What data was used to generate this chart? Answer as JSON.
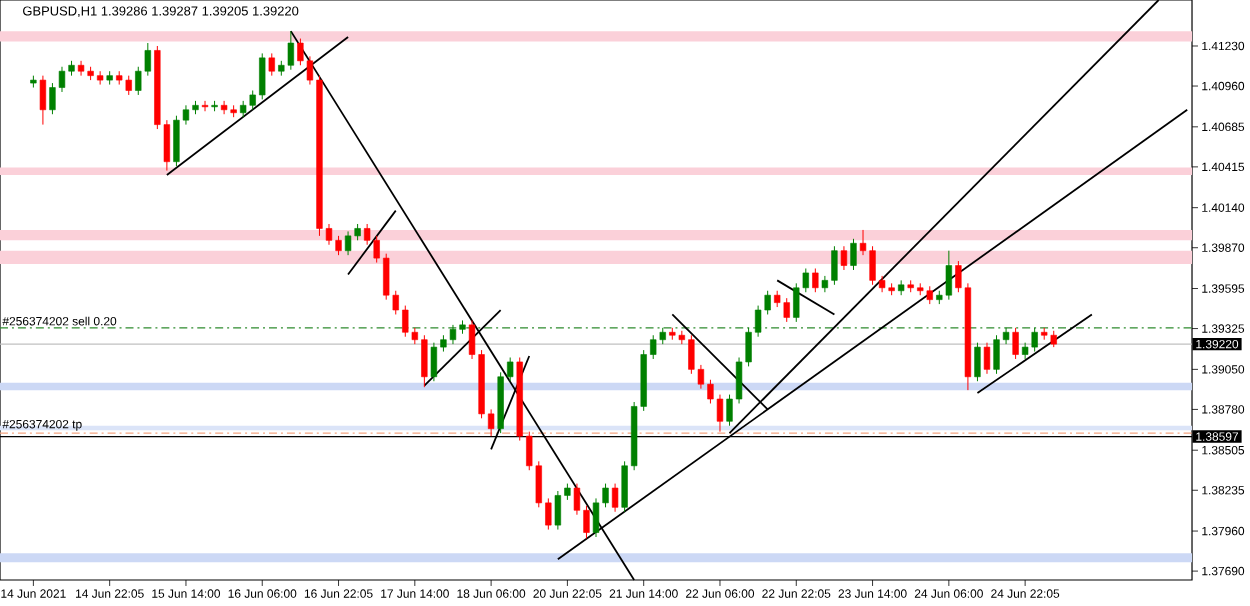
{
  "chart_data": {
    "type": "candlestick",
    "title": "GBPUSD,H1  1.39286 1.39287 1.39205 1.39220",
    "categories": [
      "14 Jun 2021",
      null,
      null,
      null,
      null,
      null,
      null,
      null,
      "14 Jun 22:05",
      null,
      null,
      null,
      null,
      null,
      null,
      null,
      "15 Jun 14:00",
      null,
      null,
      null,
      null,
      null,
      null,
      null,
      "16 Jun 06:00",
      null,
      null,
      null,
      null,
      null,
      null,
      null,
      "16 Jun 22:05",
      null,
      null,
      null,
      null,
      null,
      null,
      null,
      "17 Jun 14:00",
      null,
      null,
      null,
      null,
      null,
      null,
      null,
      "18 Jun 06:00",
      null,
      null,
      null,
      null,
      null,
      null,
      null,
      "20 Jun 22:05",
      null,
      null,
      null,
      null,
      null,
      null,
      null,
      "21 Jun 14:00",
      null,
      null,
      null,
      null,
      null,
      null,
      null,
      "22 Jun 06:00",
      null,
      null,
      null,
      null,
      null,
      null,
      null,
      "22 Jun 22:05",
      null,
      null,
      null,
      null,
      null,
      null,
      null,
      "23 Jun 14:00",
      null,
      null,
      null,
      null,
      null,
      null,
      null,
      "24 Jun 06:00",
      null,
      null,
      null,
      null,
      null,
      null,
      null,
      "24 Jun 22:05",
      null,
      null,
      null,
      null,
      null,
      null,
      null,
      null,
      null,
      null,
      null,
      null,
      null,
      null,
      null,
      null,
      null
    ],
    "ohlc": [
      [
        1.4098,
        1.4103,
        1.4095,
        1.41
      ],
      [
        1.41,
        1.4103,
        1.407,
        1.408
      ],
      [
        1.408,
        1.4098,
        1.4077,
        1.4095
      ],
      [
        1.4095,
        1.4109,
        1.4092,
        1.4106
      ],
      [
        1.4106,
        1.4113,
        1.4103,
        1.411
      ],
      [
        1.411,
        1.4113,
        1.4103,
        1.4106
      ],
      [
        1.4106,
        1.4109,
        1.41,
        1.4103
      ],
      [
        1.4103,
        1.4106,
        1.4097,
        1.41
      ],
      [
        1.41,
        1.4106,
        1.4097,
        1.4103
      ],
      [
        1.4103,
        1.4106,
        1.4097,
        1.41
      ],
      [
        1.41,
        1.4103,
        1.409,
        1.4093
      ],
      [
        1.4093,
        1.4109,
        1.409,
        1.4106
      ],
      [
        1.4106,
        1.4125,
        1.4103,
        1.412
      ],
      [
        1.412,
        1.4123,
        1.4067,
        1.407
      ],
      [
        1.407,
        1.4073,
        1.4039,
        1.4045
      ],
      [
        1.4045,
        1.4076,
        1.4042,
        1.4073
      ],
      [
        1.4073,
        1.4083,
        1.407,
        1.408
      ],
      [
        1.408,
        1.4086,
        1.4077,
        1.4083
      ],
      [
        1.4083,
        1.4086,
        1.4079,
        1.4082
      ],
      [
        1.4082,
        1.4086,
        1.4079,
        1.4083
      ],
      [
        1.4083,
        1.4086,
        1.4077,
        1.408
      ],
      [
        1.408,
        1.4083,
        1.4075,
        1.4078
      ],
      [
        1.4078,
        1.4086,
        1.4075,
        1.4083
      ],
      [
        1.4083,
        1.4093,
        1.408,
        1.409
      ],
      [
        1.409,
        1.4118,
        1.4087,
        1.4115
      ],
      [
        1.4115,
        1.4118,
        1.4103,
        1.4106
      ],
      [
        1.4106,
        1.4113,
        1.4103,
        1.411
      ],
      [
        1.411,
        1.4133,
        1.4107,
        1.4125
      ],
      [
        1.4125,
        1.4128,
        1.411,
        1.4113
      ],
      [
        1.4113,
        1.4116,
        1.4097,
        1.41
      ],
      [
        1.41,
        1.4103,
        1.3995,
        1.4
      ],
      [
        1.4,
        1.4003,
        1.3989,
        1.3992
      ],
      [
        1.3992,
        1.3995,
        1.3982,
        1.3985
      ],
      [
        1.3985,
        1.3998,
        1.3982,
        1.3995
      ],
      [
        1.3995,
        1.4003,
        1.3992,
        1.4
      ],
      [
        1.4,
        1.4003,
        1.3989,
        1.3992
      ],
      [
        1.3992,
        1.3995,
        1.3977,
        1.398
      ],
      [
        1.398,
        1.3983,
        1.3952,
        1.3955
      ],
      [
        1.3955,
        1.3958,
        1.3942,
        1.3945
      ],
      [
        1.3945,
        1.3948,
        1.3927,
        1.393
      ],
      [
        1.393,
        1.3933,
        1.3922,
        1.3925
      ],
      [
        1.3925,
        1.3928,
        1.3893,
        1.39
      ],
      [
        1.39,
        1.3923,
        1.3897,
        1.392
      ],
      [
        1.392,
        1.3928,
        1.3917,
        1.3925
      ],
      [
        1.3925,
        1.3935,
        1.3922,
        1.3932
      ],
      [
        1.3932,
        1.3938,
        1.3929,
        1.3935
      ],
      [
        1.3935,
        1.3938,
        1.3912,
        1.3915
      ],
      [
        1.3915,
        1.3918,
        1.3872,
        1.3875
      ],
      [
        1.3875,
        1.3878,
        1.386,
        1.3865
      ],
      [
        1.3865,
        1.3903,
        1.3862,
        1.39
      ],
      [
        1.39,
        1.3913,
        1.3897,
        1.391
      ],
      [
        1.391,
        1.3913,
        1.3857,
        1.386
      ],
      [
        1.386,
        1.3863,
        1.3837,
        1.384
      ],
      [
        1.384,
        1.3843,
        1.3812,
        1.3815
      ],
      [
        1.3815,
        1.3818,
        1.3797,
        1.38
      ],
      [
        1.38,
        1.3823,
        1.3797,
        1.382
      ],
      [
        1.382,
        1.3828,
        1.3817,
        1.3825
      ],
      [
        1.3825,
        1.3828,
        1.3807,
        1.381
      ],
      [
        1.381,
        1.3813,
        1.3791,
        1.3795
      ],
      [
        1.3795,
        1.3818,
        1.3792,
        1.3815
      ],
      [
        1.3815,
        1.3828,
        1.3812,
        1.3825
      ],
      [
        1.3825,
        1.3828,
        1.3809,
        1.3812
      ],
      [
        1.3812,
        1.3843,
        1.3809,
        1.384
      ],
      [
        1.384,
        1.3883,
        1.3837,
        1.388
      ],
      [
        1.388,
        1.3918,
        1.3877,
        1.3915
      ],
      [
        1.3915,
        1.3928,
        1.3912,
        1.3925
      ],
      [
        1.3925,
        1.3933,
        1.3922,
        1.393
      ],
      [
        1.393,
        1.3933,
        1.3925,
        1.3928
      ],
      [
        1.3928,
        1.3931,
        1.3922,
        1.3925
      ],
      [
        1.3925,
        1.3928,
        1.3902,
        1.3905
      ],
      [
        1.3905,
        1.3908,
        1.3892,
        1.3895
      ],
      [
        1.3895,
        1.3898,
        1.3882,
        1.3885
      ],
      [
        1.3885,
        1.3888,
        1.3863,
        1.387
      ],
      [
        1.387,
        1.3888,
        1.3867,
        1.3885
      ],
      [
        1.3885,
        1.3913,
        1.3882,
        1.391
      ],
      [
        1.391,
        1.3933,
        1.3907,
        1.393
      ],
      [
        1.393,
        1.3948,
        1.3927,
        1.3945
      ],
      [
        1.3945,
        1.3958,
        1.3942,
        1.3955
      ],
      [
        1.3955,
        1.3958,
        1.3947,
        1.395
      ],
      [
        1.395,
        1.3953,
        1.3937,
        1.394
      ],
      [
        1.394,
        1.3963,
        1.3937,
        1.396
      ],
      [
        1.396,
        1.3973,
        1.3957,
        1.397
      ],
      [
        1.397,
        1.3973,
        1.3957,
        1.396
      ],
      [
        1.396,
        1.3968,
        1.3957,
        1.3965
      ],
      [
        1.3965,
        1.3988,
        1.3962,
        1.3985
      ],
      [
        1.3985,
        1.3988,
        1.3972,
        1.3975
      ],
      [
        1.3975,
        1.3993,
        1.3972,
        1.399
      ],
      [
        1.399,
        1.3999,
        1.3982,
        1.3985
      ],
      [
        1.3985,
        1.3988,
        1.3962,
        1.3965
      ],
      [
        1.3965,
        1.3968,
        1.3957,
        1.396
      ],
      [
        1.396,
        1.3963,
        1.3955,
        1.3958
      ],
      [
        1.3958,
        1.3965,
        1.3955,
        1.3962
      ],
      [
        1.3962,
        1.3965,
        1.3957,
        1.396
      ],
      [
        1.396,
        1.3963,
        1.3955,
        1.3958
      ],
      [
        1.3958,
        1.3961,
        1.3949,
        1.3952
      ],
      [
        1.3952,
        1.3958,
        1.3949,
        1.3955
      ],
      [
        1.3955,
        1.3985,
        1.3952,
        1.3975
      ],
      [
        1.3975,
        1.3978,
        1.3957,
        1.396
      ],
      [
        1.396,
        1.3963,
        1.3891,
        1.39
      ],
      [
        1.39,
        1.3923,
        1.3897,
        1.392
      ],
      [
        1.392,
        1.3923,
        1.3902,
        1.3905
      ],
      [
        1.3905,
        1.3928,
        1.3902,
        1.3925
      ],
      [
        1.3925,
        1.3933,
        1.3922,
        1.393
      ],
      [
        1.393,
        1.3933,
        1.3912,
        1.3915
      ],
      [
        1.3915,
        1.3923,
        1.3912,
        1.392
      ],
      [
        1.392,
        1.3933,
        1.3917,
        1.393
      ],
      [
        1.393,
        1.3933,
        1.3925,
        1.3928
      ],
      [
        1.3928,
        1.3931,
        1.392,
        1.3922
      ],
      null,
      null,
      null,
      null,
      null,
      null,
      null,
      null,
      null,
      null,
      null,
      null,
      null,
      null
    ],
    "colors": [
      "#008000",
      "#ff0000",
      "#008000",
      "#008000",
      "#008000",
      "#ff0000",
      "#ff0000",
      "#ff0000",
      "#008000",
      "#ff0000",
      "#ff0000",
      "#008000",
      "#008000",
      "#ff0000",
      "#ff0000",
      "#008000",
      "#008000",
      "#008000",
      "#ff0000",
      "#008000",
      "#ff0000",
      "#ff0000",
      "#008000",
      "#008000",
      "#008000",
      "#ff0000",
      "#008000",
      "#008000",
      "#ff0000",
      "#ff0000",
      "#ff0000",
      "#ff0000",
      "#ff0000",
      "#008000",
      "#008000",
      "#ff0000",
      "#ff0000",
      "#ff0000",
      "#ff0000",
      "#ff0000",
      "#ff0000",
      "#ff0000",
      "#008000",
      "#008000",
      "#008000",
      "#008000",
      "#ff0000",
      "#ff0000",
      "#ff0000",
      "#008000",
      "#008000",
      "#ff0000",
      "#ff0000",
      "#ff0000",
      "#ff0000",
      "#008000",
      "#008000",
      "#ff0000",
      "#ff0000",
      "#008000",
      "#008000",
      "#ff0000",
      "#008000",
      "#008000",
      "#008000",
      "#008000",
      "#008000",
      "#ff0000",
      "#ff0000",
      "#ff0000",
      "#ff0000",
      "#ff0000",
      "#ff0000",
      "#008000",
      "#008000",
      "#008000",
      "#008000",
      "#008000",
      "#ff0000",
      "#ff0000",
      "#008000",
      "#008000",
      "#ff0000",
      "#008000",
      "#008000",
      "#ff0000",
      "#008000",
      "#ff0000",
      "#ff0000",
      "#ff0000",
      "#ff0000",
      "#008000",
      "#ff0000",
      "#ff0000",
      "#ff0000",
      "#008000",
      "#008000",
      "#ff0000",
      "#ff0000",
      "#008000",
      "#ff0000",
      "#008000",
      "#008000",
      "#ff0000",
      "#008000",
      "#008000",
      "#ff0000",
      "#ff0000",
      null,
      null,
      null,
      null,
      null,
      null,
      null,
      null,
      null,
      null,
      null,
      null,
      null,
      null
    ],
    "series": [
      {
        "type": "line",
        "color": "#000000",
        "values": [
          null,
          null,
          null,
          null,
          null,
          null,
          null,
          null,
          null,
          null,
          null,
          null,
          null,
          null,
          1.4036,
          null,
          null,
          null,
          null,
          null,
          null,
          null,
          null,
          null,
          null,
          null,
          null,
          null,
          null,
          null,
          null,
          null,
          null,
          1.4129,
          null,
          null,
          null,
          null,
          null,
          null,
          null,
          null,
          null,
          null,
          null,
          null,
          null,
          null,
          null,
          null,
          null,
          null,
          null,
          null,
          null,
          null,
          null,
          null,
          null,
          null,
          null,
          null,
          null,
          null,
          null,
          null,
          null,
          null,
          null,
          null,
          null,
          null,
          null,
          null,
          null,
          null,
          null,
          null,
          null,
          null,
          null,
          null,
          null,
          null,
          null,
          null,
          null,
          null,
          null,
          null,
          null,
          null,
          null,
          null,
          null,
          null,
          null,
          null,
          null,
          null,
          null,
          null,
          null,
          null,
          null,
          null,
          null,
          null,
          null,
          null,
          null,
          null,
          null,
          null,
          null,
          null,
          null,
          null,
          null,
          null,
          null,
          null
        ]
      },
      {
        "type": "line",
        "color": "#000000",
        "values": [
          null,
          null,
          null,
          null,
          null,
          null,
          null,
          null,
          null,
          null,
          null,
          null,
          null,
          null,
          null,
          null,
          null,
          null,
          null,
          null,
          null,
          null,
          null,
          null,
          null,
          null,
          null,
          1.4133,
          null,
          null,
          null,
          null,
          null,
          null,
          null,
          null,
          null,
          null,
          null,
          null,
          null,
          null,
          null,
          null,
          null,
          null,
          null,
          null,
          null,
          null,
          null,
          null,
          null,
          null,
          null,
          null,
          null,
          null,
          null,
          null,
          null,
          null,
          null,
          1.3763,
          null,
          null,
          null,
          null,
          null,
          null,
          null,
          null,
          null,
          null,
          null,
          null,
          null,
          null,
          null,
          null,
          null,
          null,
          null,
          null,
          null,
          null,
          null,
          null,
          null,
          null,
          null,
          null,
          null,
          null,
          null,
          null,
          null,
          null,
          null,
          null,
          null,
          null,
          null,
          null,
          null,
          null,
          null,
          null,
          null,
          null,
          null,
          null,
          null,
          null,
          null,
          null,
          null,
          null,
          null,
          null,
          null,
          null
        ]
      },
      {
        "type": "line",
        "color": "#000000",
        "values": [
          null,
          null,
          null,
          null,
          null,
          null,
          null,
          null,
          null,
          null,
          null,
          null,
          null,
          null,
          null,
          null,
          null,
          null,
          null,
          null,
          null,
          null,
          null,
          null,
          null,
          null,
          null,
          null,
          null,
          null,
          null,
          null,
          null,
          1.3969,
          null,
          null,
          null,
          null,
          1.4012,
          null,
          null,
          null,
          null,
          null,
          null,
          null,
          null,
          null,
          null,
          null,
          null,
          null,
          null,
          null,
          null,
          null,
          null,
          null,
          null,
          null,
          null,
          null,
          null,
          null,
          null,
          null,
          null,
          null,
          null,
          null,
          null,
          null,
          null,
          null,
          null,
          null,
          null,
          null,
          null,
          null,
          null,
          null,
          null,
          null,
          null,
          null,
          null,
          null,
          null,
          null,
          null,
          null,
          null,
          null,
          null,
          null,
          null,
          null,
          null,
          null,
          null,
          null,
          null,
          null,
          null,
          null,
          null,
          null,
          null,
          null,
          null,
          null,
          null,
          null,
          null,
          null,
          null,
          null,
          null,
          null,
          null,
          null
        ]
      },
      {
        "type": "line",
        "color": "#000000",
        "values": [
          null,
          null,
          null,
          null,
          null,
          null,
          null,
          null,
          null,
          null,
          null,
          null,
          null,
          null,
          null,
          null,
          null,
          null,
          null,
          null,
          null,
          null,
          null,
          null,
          null,
          null,
          null,
          null,
          null,
          null,
          null,
          null,
          null,
          null,
          null,
          null,
          null,
          null,
          null,
          null,
          null,
          1.3894,
          null,
          null,
          null,
          null,
          null,
          null,
          null,
          1.3945,
          null,
          null,
          null,
          null,
          null,
          null,
          null,
          null,
          null,
          null,
          null,
          null,
          null,
          null,
          null,
          null,
          null,
          null,
          null,
          null,
          null,
          null,
          null,
          null,
          null,
          null,
          null,
          null,
          null,
          null,
          null,
          null,
          null,
          null,
          null,
          null,
          null,
          null,
          null,
          null,
          null,
          null,
          null,
          null,
          null,
          null,
          null,
          null,
          null,
          null,
          null,
          null,
          null,
          null,
          null,
          null,
          null,
          null,
          null,
          null,
          null,
          null,
          null,
          null,
          null,
          null,
          null,
          null,
          null,
          null,
          null,
          null
        ]
      },
      {
        "type": "line",
        "color": "#000000",
        "values": [
          null,
          null,
          null,
          null,
          null,
          null,
          null,
          null,
          null,
          null,
          null,
          null,
          null,
          null,
          null,
          null,
          null,
          null,
          null,
          null,
          null,
          null,
          null,
          null,
          null,
          null,
          null,
          null,
          null,
          null,
          null,
          null,
          null,
          null,
          null,
          null,
          null,
          null,
          null,
          null,
          null,
          null,
          null,
          null,
          null,
          null,
          null,
          null,
          1.3851,
          null,
          null,
          null,
          1.3914,
          null,
          null,
          null,
          null,
          null,
          null,
          null,
          null,
          null,
          null,
          null,
          null,
          null,
          null,
          null,
          null,
          null,
          null,
          null,
          null,
          null,
          null,
          null,
          null,
          null,
          null,
          null,
          null,
          null,
          null,
          null,
          null,
          null,
          null,
          null,
          null,
          null,
          null,
          null,
          null,
          null,
          null,
          null,
          null,
          null,
          null,
          null,
          null,
          null,
          null,
          null,
          null,
          null,
          null,
          null,
          null,
          null,
          null,
          null,
          null,
          null,
          null,
          null,
          null,
          null,
          null,
          null,
          null,
          null
        ]
      },
      {
        "type": "line",
        "color": "#000000",
        "values": [
          null,
          null,
          null,
          null,
          null,
          null,
          null,
          null,
          null,
          null,
          null,
          null,
          null,
          null,
          null,
          null,
          null,
          null,
          null,
          null,
          null,
          null,
          null,
          null,
          null,
          null,
          null,
          null,
          null,
          null,
          null,
          null,
          null,
          null,
          null,
          null,
          null,
          null,
          null,
          null,
          null,
          null,
          null,
          null,
          null,
          null,
          null,
          null,
          null,
          null,
          null,
          null,
          null,
          null,
          null,
          1.3777,
          null,
          null,
          null,
          null,
          null,
          null,
          null,
          null,
          null,
          null,
          null,
          null,
          null,
          null,
          null,
          null,
          null,
          null,
          null,
          null,
          null,
          null,
          null,
          null,
          null,
          null,
          null,
          null,
          null,
          null,
          null,
          null,
          null,
          null,
          null,
          null,
          null,
          null,
          null,
          null,
          null,
          null,
          null,
          null,
          null,
          null,
          null,
          null,
          null,
          null,
          null,
          null,
          null,
          null,
          null,
          null,
          null,
          null,
          null,
          null,
          null,
          null,
          null,
          null,
          null,
          1.408
        ]
      },
      {
        "type": "line",
        "color": "#000000",
        "values": [
          null,
          null,
          null,
          null,
          null,
          null,
          null,
          null,
          null,
          null,
          null,
          null,
          null,
          null,
          null,
          null,
          null,
          null,
          null,
          null,
          null,
          null,
          null,
          null,
          null,
          null,
          null,
          null,
          null,
          null,
          null,
          null,
          null,
          null,
          null,
          null,
          null,
          null,
          null,
          null,
          null,
          null,
          null,
          null,
          null,
          null,
          null,
          null,
          null,
          null,
          null,
          null,
          null,
          null,
          null,
          null,
          null,
          null,
          null,
          null,
          null,
          null,
          null,
          null,
          null,
          null,
          null,
          null,
          null,
          null,
          null,
          null,
          null,
          1.3862,
          null,
          null,
          null,
          null,
          null,
          null,
          null,
          null,
          null,
          null,
          null,
          null,
          null,
          null,
          null,
          null,
          null,
          null,
          null,
          null,
          null,
          null,
          null,
          null,
          null,
          null,
          null,
          null,
          null,
          null,
          null,
          null,
          null,
          null,
          null,
          null,
          null,
          null,
          null,
          null,
          null,
          null,
          null,
          null,
          1.4154,
          null,
          null,
          null
        ]
      },
      {
        "type": "line",
        "color": "#000000",
        "values": [
          null,
          null,
          null,
          null,
          null,
          null,
          null,
          null,
          null,
          null,
          null,
          null,
          null,
          null,
          null,
          null,
          null,
          null,
          null,
          null,
          null,
          null,
          null,
          null,
          null,
          null,
          null,
          null,
          null,
          null,
          null,
          null,
          null,
          null,
          null,
          null,
          null,
          null,
          null,
          null,
          null,
          null,
          null,
          null,
          null,
          null,
          null,
          null,
          null,
          null,
          null,
          null,
          null,
          null,
          null,
          null,
          null,
          null,
          null,
          null,
          null,
          null,
          null,
          null,
          null,
          null,
          null,
          1.3942,
          null,
          null,
          null,
          null,
          null,
          null,
          null,
          null,
          null,
          1.3878,
          null,
          null,
          null,
          null,
          null,
          null,
          null,
          null,
          null,
          null,
          null,
          null,
          null,
          null,
          null,
          null,
          null,
          null,
          null,
          null,
          null,
          null,
          null,
          null,
          null,
          null,
          null,
          null,
          null,
          null,
          null,
          null,
          null,
          null,
          null,
          null,
          null,
          null,
          null,
          null,
          null,
          null,
          null,
          null
        ]
      },
      {
        "type": "line",
        "color": "#000000",
        "values": [
          null,
          null,
          null,
          null,
          null,
          null,
          null,
          null,
          null,
          null,
          null,
          null,
          null,
          null,
          null,
          null,
          null,
          null,
          null,
          null,
          null,
          null,
          null,
          null,
          null,
          null,
          null,
          null,
          null,
          null,
          null,
          null,
          null,
          null,
          null,
          null,
          null,
          null,
          null,
          null,
          null,
          null,
          null,
          null,
          null,
          null,
          null,
          null,
          null,
          null,
          null,
          null,
          null,
          null,
          null,
          null,
          null,
          null,
          null,
          null,
          null,
          null,
          null,
          null,
          null,
          null,
          null,
          null,
          null,
          null,
          null,
          null,
          null,
          null,
          null,
          null,
          null,
          null,
          1.3965,
          null,
          null,
          null,
          null,
          null,
          1.3942,
          null,
          null,
          null,
          null,
          null,
          null,
          null,
          null,
          null,
          null,
          null,
          null,
          null,
          null,
          null,
          null,
          null,
          null,
          null,
          null,
          null,
          null,
          null,
          null,
          null,
          null,
          null,
          null,
          null,
          null,
          null,
          null,
          null,
          null,
          null,
          null,
          null
        ]
      },
      {
        "type": "line",
        "color": "#000000",
        "values": [
          null,
          null,
          null,
          null,
          null,
          null,
          null,
          null,
          null,
          null,
          null,
          null,
          null,
          null,
          null,
          null,
          null,
          null,
          null,
          null,
          null,
          null,
          null,
          null,
          null,
          null,
          null,
          null,
          null,
          null,
          null,
          null,
          null,
          null,
          null,
          null,
          null,
          null,
          null,
          null,
          null,
          null,
          null,
          null,
          null,
          null,
          null,
          null,
          null,
          null,
          null,
          null,
          null,
          null,
          null,
          null,
          null,
          null,
          null,
          null,
          null,
          null,
          null,
          null,
          null,
          null,
          null,
          null,
          null,
          null,
          null,
          null,
          null,
          null,
          null,
          null,
          null,
          null,
          null,
          null,
          null,
          null,
          null,
          null,
          null,
          null,
          null,
          null,
          null,
          null,
          null,
          null,
          null,
          null,
          null,
          null,
          null,
          null,
          null,
          1.3889,
          null,
          null,
          null,
          null,
          null,
          null,
          null,
          null,
          null,
          null,
          null,
          1.3942,
          null,
          null,
          null,
          null,
          null,
          null,
          null,
          null,
          null,
          null
        ]
      }
    ],
    "bands": [
      {
        "axis": "y",
        "from": 1.4126,
        "to": 1.4133,
        "color": "#fbd0d9"
      },
      {
        "axis": "y",
        "from": 1.4036,
        "to": 1.4041,
        "color": "#fbd0d9"
      },
      {
        "axis": "y",
        "from": 1.3992,
        "to": 1.3999,
        "color": "#fbd0d9"
      },
      {
        "axis": "y",
        "from": 1.3976,
        "to": 1.3985,
        "color": "#fbd0d9"
      },
      {
        "axis": "y",
        "from": 1.3891,
        "to": 1.3896,
        "color": "#ccd8f5"
      },
      {
        "axis": "y",
        "from": 1.3864,
        "to": 1.3867,
        "color": "#dbe4f8"
      },
      {
        "axis": "y",
        "from": 1.3775,
        "to": 1.3781,
        "color": "#ccd8f5"
      }
    ],
    "ref_lines": [
      {
        "axis": "y",
        "value": 1.3933,
        "label": "#256374202 sell 0.20",
        "color": "#2e8b2e",
        "line_style": "dashed"
      },
      {
        "axis": "y",
        "value": 1.3862,
        "label": "#256374202 tp",
        "color": "#f4a582",
        "line_style": "dashed"
      },
      {
        "axis": "y",
        "value": 1.3922,
        "label": "1.39220",
        "color": "#c0c0c0",
        "line_style": "solid"
      },
      {
        "axis": "y",
        "value": 1.38597,
        "label": "1.38597",
        "color": "#000000",
        "line_style": "solid"
      }
    ],
    "ylim": [
      1.3763,
      1.4154
    ],
    "yticks": [
      {
        "value": 1.4123,
        "label": "1.41230"
      },
      {
        "value": 1.4096,
        "label": "1.40960"
      },
      {
        "value": 1.40685,
        "label": "1.40685"
      },
      {
        "value": 1.40415,
        "label": "1.40415"
      },
      {
        "value": 1.4014,
        "label": "1.40140"
      },
      {
        "value": 1.3987,
        "label": "1.39870"
      },
      {
        "value": 1.39595,
        "label": "1.39595"
      },
      {
        "value": 1.39325,
        "label": "1.39325"
      },
      {
        "value": 1.3905,
        "label": "1.39050"
      },
      {
        "value": 1.3878,
        "label": "1.38780"
      },
      {
        "value": 1.38505,
        "label": "1.38505"
      },
      {
        "value": 1.38235,
        "label": "1.38235"
      },
      {
        "value": 1.3796,
        "label": "1.37960"
      },
      {
        "value": 1.3769,
        "label": "1.37690"
      }
    ]
  }
}
